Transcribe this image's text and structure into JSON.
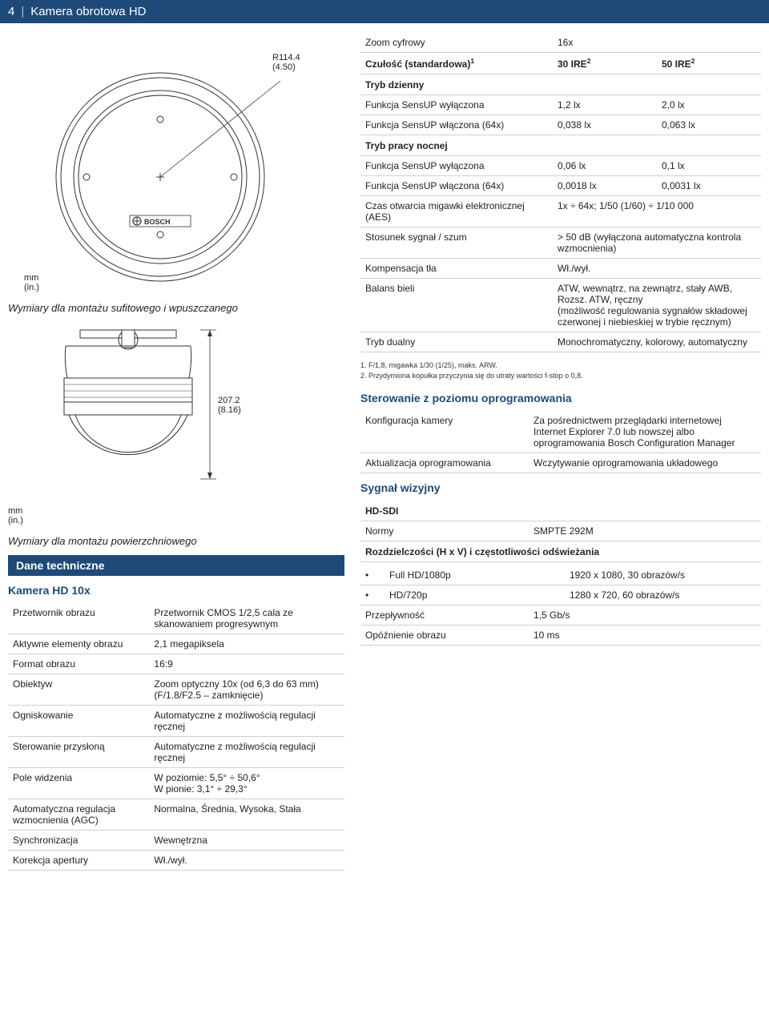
{
  "header": {
    "pagenum": "4",
    "title": "Kamera obrotowa HD"
  },
  "diagram1": {
    "dim": "R114.4\n(4.50)",
    "unit": "mm\n(in.)",
    "caption": "Wymiary dla montażu sufitowego i wpuszczanego",
    "brand": "BOSCH"
  },
  "diagram2": {
    "dim": "207.2\n(8.16)",
    "unit": "mm\n(in.)",
    "caption": "Wymiary dla montażu powierzchniowego"
  },
  "left_section": {
    "bar": "Dane techniczne",
    "subhead": "Kamera HD 10x",
    "rows": [
      {
        "k": "Przetwornik obrazu",
        "v": "Przetwornik CMOS 1/2,5 cala ze skanowaniem progresywnym"
      },
      {
        "k": "Aktywne elementy obrazu",
        "v": "2,1 megapiksela"
      },
      {
        "k": "Format obrazu",
        "v": "16:9"
      },
      {
        "k": "Obiektyw",
        "v": "Zoom optyczny 10x (od 6,3 do 63 mm) (F/1.8/F2.5 – zamknięcie)"
      },
      {
        "k": "Ogniskowanie",
        "v": "Automatyczne z możliwością regulacji ręcznej"
      },
      {
        "k": "Sterowanie przysłoną",
        "v": "Automatyczne z możliwością regulacji ręcznej"
      },
      {
        "k": "Pole widzenia",
        "v": "W poziomie: 5,5° ÷ 50,6°\nW pionie: 3,1° ÷ 29,3°"
      },
      {
        "k": "Automatyczna regulacja wzmocnienia (AGC)",
        "v": "Normalna, Średnia, Wysoka, Stała"
      },
      {
        "k": "Synchronizacja",
        "v": "Wewnętrzna"
      },
      {
        "k": "Korekcja apertury",
        "v": "Wł./wył."
      }
    ]
  },
  "right_top": {
    "rows1": [
      {
        "lbl": "Zoom cyfrowy",
        "v1": "16x",
        "v2": ""
      }
    ],
    "sensitivity_label": "Czułość (standardowa)",
    "sensitivity_sup": "1",
    "col1": "30 IRE",
    "col1_sup": "2",
    "col2": "50 IRE",
    "col2_sup": "2",
    "day_label": "Tryb dzienny",
    "day_rows": [
      {
        "lbl": "Funkcja SensUP wyłączona",
        "v1": "1,2 lx",
        "v2": "2,0 lx"
      },
      {
        "lbl": "Funkcja SensUP włączona (64x)",
        "v1": "0,038 lx",
        "v2": "0,063 lx"
      }
    ],
    "night_label": "Tryb pracy nocnej",
    "night_rows": [
      {
        "lbl": "Funkcja SensUP wyłączona",
        "v1": "0,06 lx",
        "v2": "0,1 lx"
      },
      {
        "lbl": "Funkcja SensUP włączona (64x)",
        "v1": "0,0018 lx",
        "v2": "0,0031 lx"
      }
    ],
    "other_rows": [
      {
        "lbl": "Czas otwarcia migawki elektronicznej (AES)",
        "v": "1x ÷ 64x; 1/50 (1/60) ÷ 1/10 000"
      },
      {
        "lbl": "Stosunek sygnał / szum",
        "v": "> 50 dB (wyłączona automatyczna kontrola wzmocnienia)"
      },
      {
        "lbl": "Kompensacja tła",
        "v": "Wł./wył."
      },
      {
        "lbl": "Balans bieli",
        "v": "ATW, wewnątrz, na zewnątrz, stały AWB,\nRozsz. ATW, ręczny\n(możliwość regulowania sygnałów składowej czerwonej i niebieskiej w trybie ręcznym)"
      },
      {
        "lbl": "Tryb dualny",
        "v": "Monochromatyczny, kolorowy, automatyczny"
      }
    ],
    "footnotes": [
      "1. F/1,8, migawka 1/30 (1/25), maks. ARW.",
      "2. Przydymiona kopułka przyczynia się do utraty wartości f-stop o 0,8."
    ]
  },
  "right_soft": {
    "title": "Sterowanie z poziomu oprogramowania",
    "rows": [
      {
        "k": "Konfiguracja kamery",
        "v": "Za pośrednictwem przeglądarki internetowej Internet Explorer 7.0 lub nowszej albo oprogramowania Bosch Configuration Manager"
      },
      {
        "k": "Aktualizacja oprogramowania",
        "v": "Wczytywanie oprogramowania układowego"
      }
    ]
  },
  "right_signal": {
    "title": "Sygnał wizyjny",
    "hdsdi": "HD-SDI",
    "rows1": [
      {
        "k": "Normy",
        "v": "SMPTE 292M"
      }
    ],
    "res_title": "Rozdzielczości (H x V) i częstotliwości odświeżania",
    "res_rows": [
      {
        "k": "Full HD/1080p",
        "v": "1920 x 1080, 30 obrazów/s"
      },
      {
        "k": "HD/720p",
        "v": "1280 x 720, 60 obrazów/s"
      }
    ],
    "rows2": [
      {
        "k": "Przepływność",
        "v": "1,5 Gb/s"
      },
      {
        "k": "Opóźnienie obrazu",
        "v": "10 ms"
      }
    ]
  }
}
